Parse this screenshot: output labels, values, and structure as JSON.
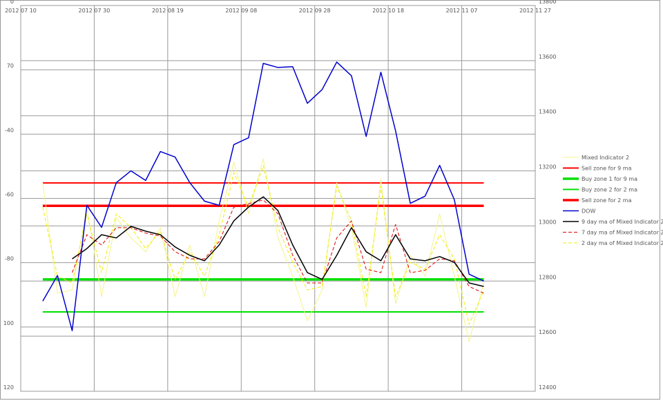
{
  "chart_data": {
    "type": "line",
    "x": [
      "2012 07 16",
      "2012 07 20",
      "2012 07 24",
      "2012 07 28",
      "2012 08 01",
      "2012 08 05",
      "2012 08 09",
      "2012 08 13",
      "2012 08 17",
      "2012 08 21",
      "2012 08 25",
      "2012 08 29",
      "2012 09 02",
      "2012 09 06",
      "2012 09 10",
      "2012 09 14",
      "2012 09 18",
      "2012 09 22",
      "2012 09 26",
      "2012 09 30",
      "2012 10 04",
      "2012 10 08",
      "2012 10 12",
      "2012 10 16",
      "2012 10 20",
      "2012 10 24",
      "2012 10 28",
      "2012 11 01",
      "2012 11 05",
      "2012 11 09",
      "2012 11 13"
    ],
    "xlim": [
      "2012 07 10",
      "2012 11 27"
    ],
    "xticks": [
      "2012 07 10",
      "2012 07 30",
      "2012 08 19",
      "2012 09 08",
      "2012 09 28",
      "2012 10 18",
      "2012 11 07",
      "2012 11 27"
    ],
    "ylim": [
      120,
      0
    ],
    "yticks": [
      0,
      {
        "value": 20,
        "label": "70"
      },
      {
        "value": 40,
        "label": "-40"
      },
      {
        "value": 60,
        "label": "-60"
      },
      {
        "value": 80,
        "label": "-80"
      },
      100,
      120
    ],
    "y2lim": [
      12400,
      13800
    ],
    "y2ticks": [
      12400,
      12600,
      12800,
      13000,
      13200,
      13400,
      13600,
      13800
    ],
    "grid": true,
    "legend": "right",
    "series": [
      {
        "name": "Mixed Indicator 2",
        "color": "#f4f48a",
        "width": 1,
        "values": [
          55.2,
          89.5,
          88.5,
          62.7,
          90.6,
          66,
          72.3,
          76.6,
          69.1,
          90.6,
          74.5,
          90.6,
          67,
          48.7,
          64.8,
          47.7,
          72.3,
          84.2,
          98.1,
          88.5,
          55.2,
          69.1,
          93.8,
          54.1,
          92.7,
          77.7,
          84.2,
          64.8,
          84.2,
          104.6,
          86.3
        ]
      },
      {
        "name": "Sell zone for 9 ma",
        "color": "#ff0000",
        "width": 2,
        "value": 55.2
      },
      {
        "name": "Buy zone 1 for 9 ma",
        "color": "#00e000",
        "width": 3.5,
        "value": 85.2
      },
      {
        "name": "Buy zone 2 for 2 ma",
        "color": "#00e000",
        "width": 2,
        "value": 95.3
      },
      {
        "name": "Sell zone for 2 ma",
        "color": "#ff0000",
        "width": 3.5,
        "value": 62.3
      },
      {
        "name": "DOW",
        "color": "#0000cc",
        "width": 1.5,
        "axis": "y2",
        "values": [
          12727,
          12820,
          12620,
          13075,
          12995,
          13157,
          13200,
          13165,
          13270,
          13250,
          13157,
          13090,
          13075,
          13295,
          13320,
          13590,
          13575,
          13578,
          13445,
          13495,
          13595,
          13545,
          13325,
          13558,
          13345,
          13082,
          13108,
          13220,
          13095,
          12825,
          12800
        ]
      },
      {
        "name": "9 day ma of Mixed Indicator 2",
        "color": "#000000",
        "width": 1.5,
        "values": [
          null,
          null,
          78.8,
          75.6,
          71.3,
          72.3,
          68.7,
          70.2,
          71.3,
          75.1,
          77.7,
          79.4,
          74.5,
          67,
          62.7,
          59.5,
          63.8,
          74.5,
          83.1,
          85.2,
          77.7,
          69.1,
          76.6,
          79.4,
          71.3,
          78.8,
          79.4,
          78.1,
          79.9,
          86.3,
          87.4
        ]
      },
      {
        "name": "7 day ma of Mixed Indicator 2",
        "color": "#dd0000",
        "width": 1,
        "dashed": true,
        "values": [
          null,
          null,
          83.1,
          71.3,
          74.5,
          69.1,
          69.1,
          70.8,
          71.7,
          76.6,
          78.8,
          78.8,
          73.4,
          62.7,
          61.6,
          60.5,
          64.8,
          77.7,
          86.3,
          86.3,
          72.3,
          67,
          82,
          83.1,
          68.1,
          83.1,
          82.4,
          78.8,
          79.4,
          87.4,
          89.5
        ]
      },
      {
        "name": "2 day ma of Mixed Indicator 2",
        "color": "#eeee00",
        "width": 1,
        "dashed": true,
        "values": [
          62.7,
          84.2,
          86.3,
          64.8,
          83.1,
          64.8,
          69.1,
          75.6,
          70.2,
          85.2,
          76.6,
          84.2,
          71.3,
          52,
          62.7,
          49.8,
          69.1,
          79.9,
          88.5,
          87.4,
          56.2,
          67,
          90.6,
          56.2,
          90.6,
          79.9,
          82,
          71.3,
          78.8,
          99.2,
          88.5
        ]
      }
    ]
  }
}
